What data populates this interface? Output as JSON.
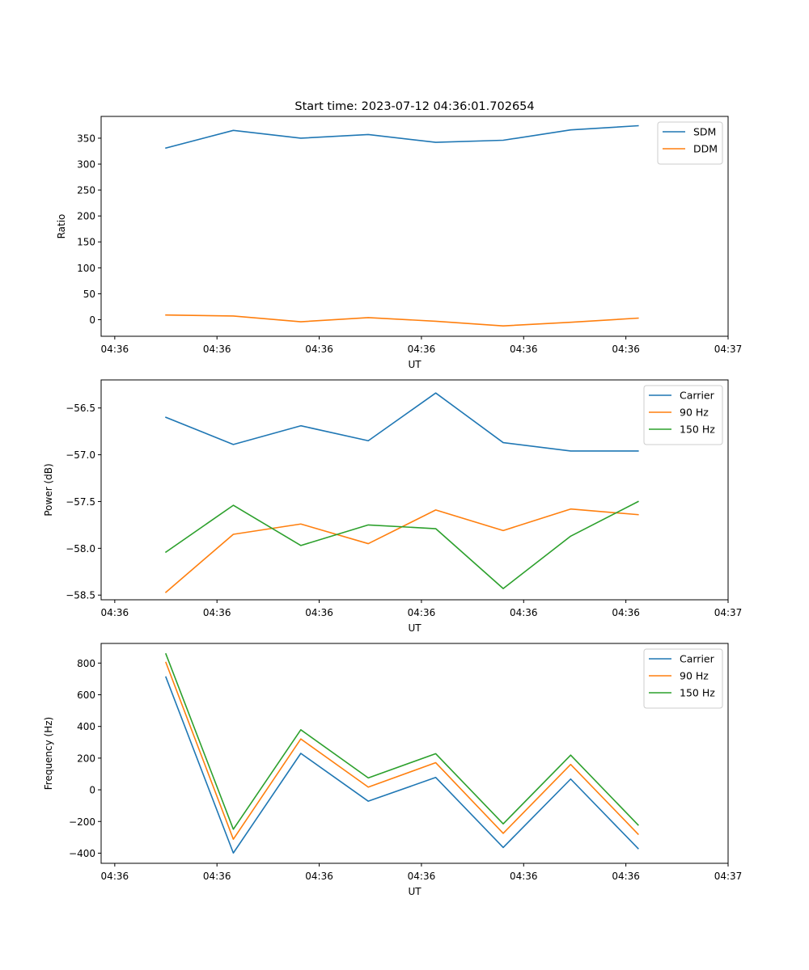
{
  "figure": {
    "title": "Start time: 2023-07-12 04:36:01.702654"
  },
  "chart_data": [
    {
      "type": "line",
      "title": "Start time: 2023-07-12 04:36:01.702654",
      "xlabel": "UT",
      "ylabel": "Ratio",
      "xlim": [
        -0.2,
        9.0
      ],
      "ylim": [
        -32,
        392
      ],
      "x_ticks": [
        0,
        1.5,
        3,
        4.5,
        6,
        7.5,
        9
      ],
      "x_tick_labels": [
        "04:36",
        "04:36",
        "04:36",
        "04:36",
        "04:36",
        "04:36",
        "04:37"
      ],
      "y_ticks": [
        0,
        50,
        100,
        150,
        200,
        250,
        300,
        350
      ],
      "y_tick_labels": [
        "0",
        "50",
        "100",
        "150",
        "200",
        "250",
        "300",
        "350"
      ],
      "legend_position": "top-right",
      "x": [
        0.75,
        1.74,
        2.73,
        3.72,
        4.71,
        5.7,
        6.69,
        7.68
      ],
      "series": [
        {
          "name": "SDM",
          "color": "#1f77b4",
          "values": [
            331,
            365,
            350,
            357,
            342,
            346,
            366,
            374
          ]
        },
        {
          "name": "DDM",
          "color": "#ff7f0e",
          "values": [
            9,
            7,
            -4,
            4,
            -3,
            -12,
            -5,
            3
          ]
        }
      ]
    },
    {
      "type": "line",
      "title": "",
      "xlabel": "UT",
      "ylabel": "Power (dB)",
      "xlim": [
        -0.2,
        9.0
      ],
      "ylim": [
        -58.55,
        -56.2
      ],
      "x_ticks": [
        0,
        1.5,
        3,
        4.5,
        6,
        7.5,
        9
      ],
      "x_tick_labels": [
        "04:36",
        "04:36",
        "04:36",
        "04:36",
        "04:36",
        "04:36",
        "04:37"
      ],
      "y_ticks": [
        -58.5,
        -58.0,
        -57.5,
        -57.0,
        -56.5
      ],
      "y_tick_labels": [
        "−58.5",
        "−58.0",
        "−57.5",
        "−57.0",
        "−56.5"
      ],
      "legend_position": "top-right",
      "x": [
        0.75,
        1.74,
        2.73,
        3.72,
        4.71,
        5.7,
        6.69,
        7.68
      ],
      "series": [
        {
          "name": "Carrier",
          "color": "#1f77b4",
          "values": [
            -56.6,
            -56.89,
            -56.69,
            -56.85,
            -56.34,
            -56.87,
            -56.96,
            -56.96
          ]
        },
        {
          "name": "90 Hz",
          "color": "#ff7f0e",
          "values": [
            -58.47,
            -57.85,
            -57.74,
            -57.95,
            -57.59,
            -57.81,
            -57.58,
            -57.64
          ]
        },
        {
          "name": "150 Hz",
          "color": "#2ca02c",
          "values": [
            -58.04,
            -57.54,
            -57.97,
            -57.75,
            -57.79,
            -58.43,
            -57.87,
            -57.5
          ]
        }
      ]
    },
    {
      "type": "line",
      "title": "",
      "xlabel": "UT",
      "ylabel": "Frequency (Hz)",
      "xlim": [
        -0.2,
        9.0
      ],
      "ylim": [
        -464,
        924
      ],
      "x_ticks": [
        0,
        1.5,
        3,
        4.5,
        6,
        7.5,
        9
      ],
      "x_tick_labels": [
        "04:36",
        "04:36",
        "04:36",
        "04:36",
        "04:36",
        "04:36",
        "04:37"
      ],
      "y_ticks": [
        -400,
        -200,
        0,
        200,
        400,
        600,
        800
      ],
      "y_tick_labels": [
        "−400",
        "−200",
        "0",
        "200",
        "400",
        "600",
        "800"
      ],
      "legend_position": "top-right",
      "x": [
        0.75,
        1.74,
        2.73,
        3.72,
        4.71,
        5.7,
        6.69,
        7.68
      ],
      "series": [
        {
          "name": "Carrier",
          "color": "#1f77b4",
          "values": [
            712,
            -399,
            230,
            -72,
            78,
            -364,
            68,
            -371
          ]
        },
        {
          "name": "90 Hz",
          "color": "#ff7f0e",
          "values": [
            804,
            -312,
            321,
            17,
            171,
            -275,
            160,
            -280
          ]
        },
        {
          "name": "150 Hz",
          "color": "#2ca02c",
          "values": [
            858,
            -249,
            379,
            75,
            228,
            -215,
            219,
            -222
          ]
        }
      ]
    }
  ]
}
